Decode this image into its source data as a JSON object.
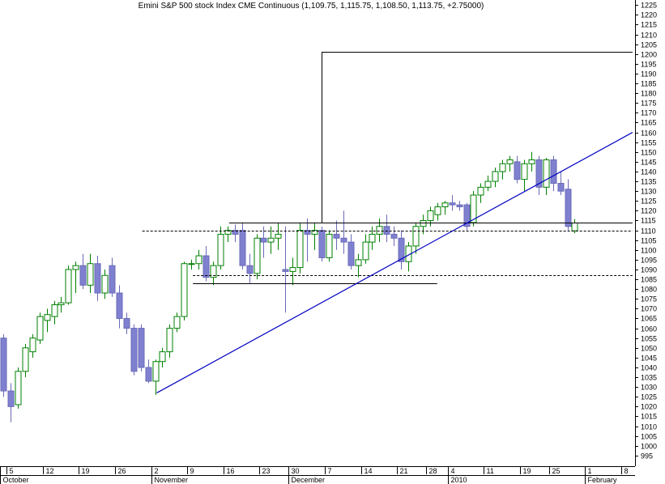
{
  "colors": {
    "up": "#008000",
    "down": "#8080d0",
    "down_edge": "#6a6ab8",
    "trendline": "#0000c0",
    "lines": "#000000",
    "background": "#ffffff"
  },
  "chart_data": {
    "type": "candlestick",
    "title": "Emini S&P 500 stock Index CME Continuous (1,109.75, 1,115.75, 1,108.50, 1,113.75, +2.75000)",
    "y_axis_side": "right",
    "ylim": [
      990,
      1228
    ],
    "y_ticks": [
      995,
      1000,
      1005,
      1010,
      1015,
      1020,
      1025,
      1030,
      1035,
      1040,
      1045,
      1050,
      1055,
      1060,
      1065,
      1070,
      1075,
      1080,
      1085,
      1090,
      1095,
      1100,
      1105,
      1110,
      1115,
      1120,
      1125,
      1130,
      1135,
      1140,
      1145,
      1150,
      1155,
      1160,
      1165,
      1170,
      1175,
      1180,
      1185,
      1190,
      1195,
      1200,
      1205,
      1210,
      1215,
      1220,
      1225
    ],
    "x_ticks": [
      {
        "label": "5",
        "i": 1
      },
      {
        "label": "12",
        "i": 6
      },
      {
        "label": "19",
        "i": 11
      },
      {
        "label": "26",
        "i": 16
      },
      {
        "label": "2",
        "i": 21
      },
      {
        "label": "9",
        "i": 26
      },
      {
        "label": "16",
        "i": 31
      },
      {
        "label": "23",
        "i": 36
      },
      {
        "label": "30",
        "i": 40
      },
      {
        "label": "7",
        "i": 45
      },
      {
        "label": "14",
        "i": 50
      },
      {
        "label": "21",
        "i": 55
      },
      {
        "label": "28",
        "i": 59
      },
      {
        "label": "4",
        "i": 62
      },
      {
        "label": "11",
        "i": 67
      },
      {
        "label": "19",
        "i": 72
      },
      {
        "label": "25",
        "i": 76
      },
      {
        "label": "1",
        "i": 81
      },
      {
        "label": "8",
        "i": 86
      }
    ],
    "months": [
      {
        "label": "October",
        "i": 0
      },
      {
        "label": "November",
        "i": 21
      },
      {
        "label": "December",
        "i": 40
      },
      {
        "label": "2010",
        "i": 62
      },
      {
        "label": "February",
        "i": 81
      }
    ],
    "candles": [
      {
        "o": 1055,
        "h": 1057,
        "l": 1025,
        "h2": 0,
        "c": 1028
      },
      {
        "o": 1028,
        "h": 1032,
        "l": 1012,
        "c": 1020
      },
      {
        "o": 1021,
        "h": 1040,
        "l": 1019,
        "c": 1038
      },
      {
        "o": 1038,
        "h": 1052,
        "l": 1035,
        "c": 1050
      },
      {
        "o": 1048,
        "h": 1057,
        "l": 1045,
        "c": 1055
      },
      {
        "o": 1054,
        "h": 1068,
        "l": 1052,
        "c": 1066
      },
      {
        "o": 1064,
        "h": 1070,
        "l": 1058,
        "c": 1067
      },
      {
        "o": 1066,
        "h": 1074,
        "l": 1062,
        "c": 1072
      },
      {
        "o": 1072,
        "h": 1076,
        "l": 1068,
        "c": 1073
      },
      {
        "o": 1073,
        "h": 1092,
        "l": 1072,
        "c": 1090
      },
      {
        "o": 1090,
        "h": 1094,
        "l": 1078,
        "c": 1092
      },
      {
        "o": 1092,
        "h": 1098,
        "l": 1080,
        "c": 1082
      },
      {
        "o": 1082,
        "h": 1098,
        "l": 1078,
        "c": 1093
      },
      {
        "o": 1093,
        "h": 1097,
        "l": 1074,
        "c": 1078
      },
      {
        "o": 1078,
        "h": 1090,
        "l": 1075,
        "c": 1087
      },
      {
        "o": 1092,
        "h": 1096,
        "l": 1076,
        "c": 1078
      },
      {
        "o": 1078,
        "h": 1082,
        "l": 1060,
        "c": 1065
      },
      {
        "o": 1065,
        "h": 1068,
        "l": 1057,
        "c": 1060
      },
      {
        "o": 1060,
        "h": 1062,
        "l": 1036,
        "c": 1038
      },
      {
        "o": 1060,
        "h": 1062,
        "l": 1038,
        "c": 1040
      },
      {
        "o": 1040,
        "h": 1044,
        "l": 1032,
        "c": 1033
      },
      {
        "o": 1033,
        "h": 1044,
        "l": 1026,
        "c": 1043
      },
      {
        "o": 1043,
        "h": 1050,
        "l": 1040,
        "c": 1048
      },
      {
        "o": 1048,
        "h": 1062,
        "l": 1045,
        "c": 1060
      },
      {
        "o": 1060,
        "h": 1068,
        "l": 1058,
        "c": 1066
      },
      {
        "o": 1066,
        "h": 1094,
        "l": 1064,
        "c": 1093
      },
      {
        "o": 1093,
        "h": 1095,
        "l": 1090,
        "c": 1093
      },
      {
        "o": 1093,
        "h": 1100,
        "l": 1090,
        "c": 1097
      },
      {
        "o": 1097,
        "h": 1102,
        "l": 1084,
        "c": 1086
      },
      {
        "o": 1086,
        "h": 1094,
        "l": 1082,
        "c": 1092
      },
      {
        "o": 1092,
        "h": 1112,
        "l": 1090,
        "c": 1108
      },
      {
        "o": 1108,
        "h": 1112,
        "l": 1104,
        "c": 1110
      },
      {
        "o": 1110,
        "h": 1113,
        "l": 1104,
        "c": 1108
      },
      {
        "o": 1110,
        "h": 1114,
        "l": 1090,
        "c": 1092
      },
      {
        "o": 1092,
        "h": 1098,
        "l": 1083,
        "c": 1088
      },
      {
        "o": 1088,
        "h": 1108,
        "l": 1085,
        "c": 1106
      },
      {
        "o": 1106,
        "h": 1112,
        "l": 1096,
        "c": 1104
      },
      {
        "o": 1104,
        "h": 1112,
        "l": 1098,
        "c": 1106
      },
      {
        "o": 1106,
        "h": 1114,
        "l": 1100,
        "c": 1108
      },
      {
        "o": 1090,
        "h": 1112,
        "l": 1068,
        "c": 1089
      },
      {
        "o": 1089,
        "h": 1096,
        "l": 1082,
        "c": 1091
      },
      {
        "o": 1091,
        "h": 1114,
        "l": 1088,
        "c": 1110
      },
      {
        "o": 1110,
        "h": 1116,
        "l": 1094,
        "c": 1108
      },
      {
        "o": 1108,
        "h": 1114,
        "l": 1100,
        "c": 1110
      },
      {
        "o": 1110,
        "h": 1112,
        "l": 1094,
        "c": 1096
      },
      {
        "o": 1096,
        "h": 1110,
        "l": 1094,
        "c": 1108
      },
      {
        "o": 1108,
        "h": 1115,
        "l": 1100,
        "c": 1106
      },
      {
        "o": 1106,
        "h": 1120,
        "l": 1098,
        "c": 1104
      },
      {
        "o": 1104,
        "h": 1108,
        "l": 1090,
        "c": 1092
      },
      {
        "o": 1092,
        "h": 1098,
        "l": 1086,
        "c": 1095
      },
      {
        "o": 1095,
        "h": 1108,
        "l": 1093,
        "c": 1104
      },
      {
        "o": 1104,
        "h": 1112,
        "l": 1100,
        "c": 1108
      },
      {
        "o": 1108,
        "h": 1116,
        "l": 1104,
        "c": 1112
      },
      {
        "o": 1112,
        "h": 1118,
        "l": 1104,
        "c": 1108
      },
      {
        "o": 1108,
        "h": 1112,
        "l": 1102,
        "c": 1106
      },
      {
        "o": 1106,
        "h": 1110,
        "l": 1090,
        "c": 1094
      },
      {
        "o": 1094,
        "h": 1104,
        "l": 1089,
        "c": 1102
      },
      {
        "o": 1102,
        "h": 1114,
        "l": 1098,
        "c": 1112
      },
      {
        "o": 1112,
        "h": 1118,
        "l": 1108,
        "c": 1115
      },
      {
        "o": 1115,
        "h": 1122,
        "l": 1112,
        "c": 1120
      },
      {
        "o": 1118,
        "h": 1124,
        "l": 1115,
        "c": 1122
      },
      {
        "o": 1122,
        "h": 1125,
        "l": 1118,
        "c": 1124
      },
      {
        "o": 1124,
        "h": 1128,
        "l": 1120,
        "c": 1123
      },
      {
        "o": 1123,
        "h": 1125,
        "l": 1120,
        "c": 1122
      },
      {
        "o": 1123,
        "h": 1124,
        "l": 1110,
        "c": 1112
      },
      {
        "o": 1114,
        "h": 1130,
        "l": 1112,
        "c": 1128
      },
      {
        "o": 1128,
        "h": 1134,
        "l": 1124,
        "c": 1132
      },
      {
        "o": 1132,
        "h": 1138,
        "l": 1130,
        "c": 1135
      },
      {
        "o": 1135,
        "h": 1142,
        "l": 1132,
        "c": 1140
      },
      {
        "o": 1140,
        "h": 1146,
        "l": 1136,
        "c": 1144
      },
      {
        "o": 1144,
        "h": 1148,
        "l": 1140,
        "c": 1146
      },
      {
        "o": 1145,
        "h": 1148,
        "l": 1134,
        "c": 1136
      },
      {
        "o": 1136,
        "h": 1146,
        "l": 1130,
        "c": 1144
      },
      {
        "o": 1144,
        "h": 1150,
        "l": 1140,
        "c": 1146
      },
      {
        "o": 1146,
        "h": 1148,
        "l": 1128,
        "c": 1132
      },
      {
        "o": 1132,
        "h": 1147,
        "l": 1128,
        "c": 1146
      },
      {
        "o": 1146,
        "h": 1148,
        "l": 1130,
        "c": 1134
      },
      {
        "o": 1134,
        "h": 1140,
        "l": 1128,
        "c": 1130
      },
      {
        "o": 1131,
        "h": 1136,
        "l": 1110,
        "c": 1112
      },
      {
        "o": 1109.75,
        "h": 1115.75,
        "l": 1108.5,
        "c": 1113.75
      }
    ],
    "trendline": {
      "from": {
        "i": 21,
        "v": 1027
      },
      "to": {
        "i": 87,
        "v": 1160
      }
    },
    "hlines": [
      {
        "i0": 19,
        "i1": 87,
        "v": 1110,
        "dashed": true
      },
      {
        "i0": 31,
        "i1": 87,
        "v": 1114,
        "dashed": false
      },
      {
        "i0": 26,
        "i1": 87,
        "v": 1087,
        "dashed": true
      },
      {
        "i0": 26,
        "i1": 60,
        "v": 1083,
        "dashed": false
      }
    ],
    "box": {
      "i0": 44,
      "i1": 87,
      "v_top": 1201,
      "v_bottom": 1114
    }
  }
}
